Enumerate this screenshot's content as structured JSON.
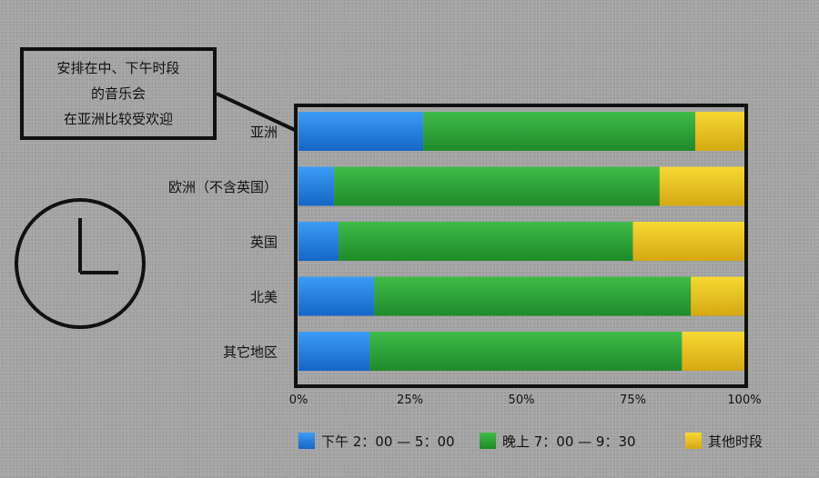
{
  "annotation": {
    "lines": [
      "安排在中、下午时段",
      "的音乐会",
      "在亚洲比较受欢迎"
    ]
  },
  "colors": {
    "blue": "#1f7fe0",
    "green": "#2ea33a",
    "yellow": "#eac21a"
  },
  "icon": "clock-icon",
  "chart_data": {
    "type": "bar",
    "orientation": "horizontal",
    "stacked": true,
    "percent": true,
    "categories": [
      "亚洲",
      "欧洲（不含英国）",
      "英国",
      "北美",
      "其它地区"
    ],
    "series": [
      {
        "name": "下午 2：00 — 5：00",
        "values": [
          28,
          8,
          9,
          17,
          16
        ]
      },
      {
        "name": "晚上 7：00 — 9：30",
        "values": [
          61,
          73,
          66,
          71,
          70
        ]
      },
      {
        "name": "其他时段",
        "values": [
          11,
          19,
          25,
          12,
          14
        ]
      }
    ],
    "xlim": [
      0,
      100
    ],
    "x_ticks": [
      "0%",
      "25%",
      "50%",
      "75%",
      "100%"
    ],
    "legend_position": "bottom",
    "grid": false
  }
}
